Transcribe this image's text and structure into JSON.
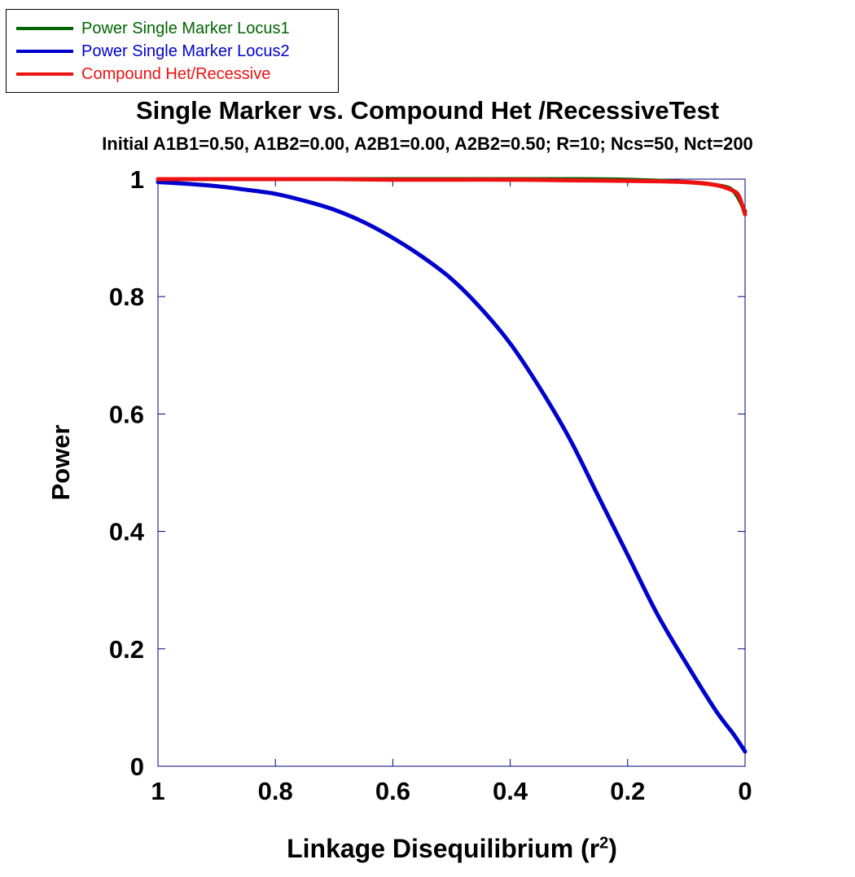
{
  "chart_data": {
    "type": "line",
    "title": "Single Marker vs. Compound Het /RecessiveTest",
    "subtitle": "Initial A1B1=0.50, A1B2=0.00, A2B1=0.00, A2B2=0.50; R=10; Ncs=50, Nct=200",
    "xlabel": "Linkage Disequilibrium (r",
    "xlabel_superscript": "2",
    "xlabel_suffix": ")",
    "ylabel": "Power",
    "xlim": [
      1,
      0
    ],
    "ylim": [
      0,
      1
    ],
    "x_reversed": true,
    "x_ticks": [
      1,
      0.8,
      0.6,
      0.4,
      0.2,
      0
    ],
    "x_tick_labels": [
      "1",
      "0.8",
      "0.6",
      "0.4",
      "0.2",
      "0"
    ],
    "y_ticks": [
      0,
      0.2,
      0.4,
      0.6,
      0.8,
      1
    ],
    "y_tick_labels": [
      "0",
      "0.2",
      "0.4",
      "0.6",
      "0.8",
      "1"
    ],
    "legend_placement": "top-left",
    "grid": false,
    "series": [
      {
        "name": "Power Single Marker Locus1",
        "color": "#006400",
        "x": [
          1,
          0.9,
          0.8,
          0.7,
          0.6,
          0.5,
          0.4,
          0.3,
          0.2,
          0.1,
          0.05,
          0.02,
          0
        ],
        "y": [
          1,
          1,
          1,
          1,
          1,
          1,
          1,
          1,
          0.999,
          0.995,
          0.99,
          0.98,
          0.945
        ]
      },
      {
        "name": "Power Single Marker Locus2",
        "color": "#0000cc",
        "x": [
          1,
          0.95,
          0.9,
          0.85,
          0.8,
          0.75,
          0.7,
          0.65,
          0.6,
          0.55,
          0.5,
          0.45,
          0.4,
          0.35,
          0.3,
          0.25,
          0.2,
          0.15,
          0.1,
          0.05,
          0.02,
          0
        ],
        "y": [
          0.995,
          0.992,
          0.988,
          0.982,
          0.975,
          0.963,
          0.948,
          0.927,
          0.9,
          0.868,
          0.83,
          0.78,
          0.72,
          0.645,
          0.56,
          0.46,
          0.36,
          0.26,
          0.175,
          0.095,
          0.055,
          0.025
        ]
      },
      {
        "name": "Compound Het/Recessive",
        "color": "#ee1111",
        "x": [
          1,
          0.9,
          0.8,
          0.7,
          0.6,
          0.5,
          0.4,
          0.3,
          0.2,
          0.1,
          0.05,
          0.02,
          0.01,
          0
        ],
        "y": [
          1,
          1,
          1,
          1,
          0.999,
          0.999,
          0.999,
          0.998,
          0.997,
          0.995,
          0.99,
          0.98,
          0.97,
          0.94
        ]
      }
    ]
  }
}
